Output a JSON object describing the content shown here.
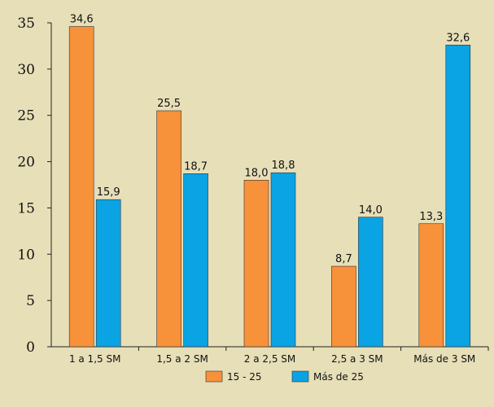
{
  "chart_data": {
    "type": "bar",
    "title": "",
    "xlabel": "",
    "ylabel": "",
    "categories": [
      "1 a 1,5 SM",
      "1,5 a 2 SM",
      "2 a 2,5 SM",
      "2,5 a 3 SM",
      "Más de 3 SM"
    ],
    "series": [
      {
        "name": "15 - 25",
        "color": "#f7913a",
        "values": [
          34.6,
          25.5,
          18.0,
          8.7,
          13.3
        ],
        "labels": [
          "34,6",
          "25,5",
          "18,0",
          "8,7",
          "13,3"
        ]
      },
      {
        "name": "Más de 25",
        "color": "#0aa3e4",
        "values": [
          15.9,
          18.7,
          18.8,
          14.0,
          32.6
        ],
        "labels": [
          "15,9",
          "18,7",
          "18,8",
          "14,0",
          "32,6"
        ]
      }
    ],
    "ylim": [
      0,
      35
    ],
    "yticks": [
      0,
      5,
      10,
      15,
      20,
      25,
      30,
      35
    ],
    "ytick_labels": [
      "0",
      "5",
      "10",
      "15",
      "20",
      "25",
      "30",
      "35"
    ],
    "grid": false,
    "legend_position": "bottom",
    "background_color": "#e7dfb8"
  }
}
